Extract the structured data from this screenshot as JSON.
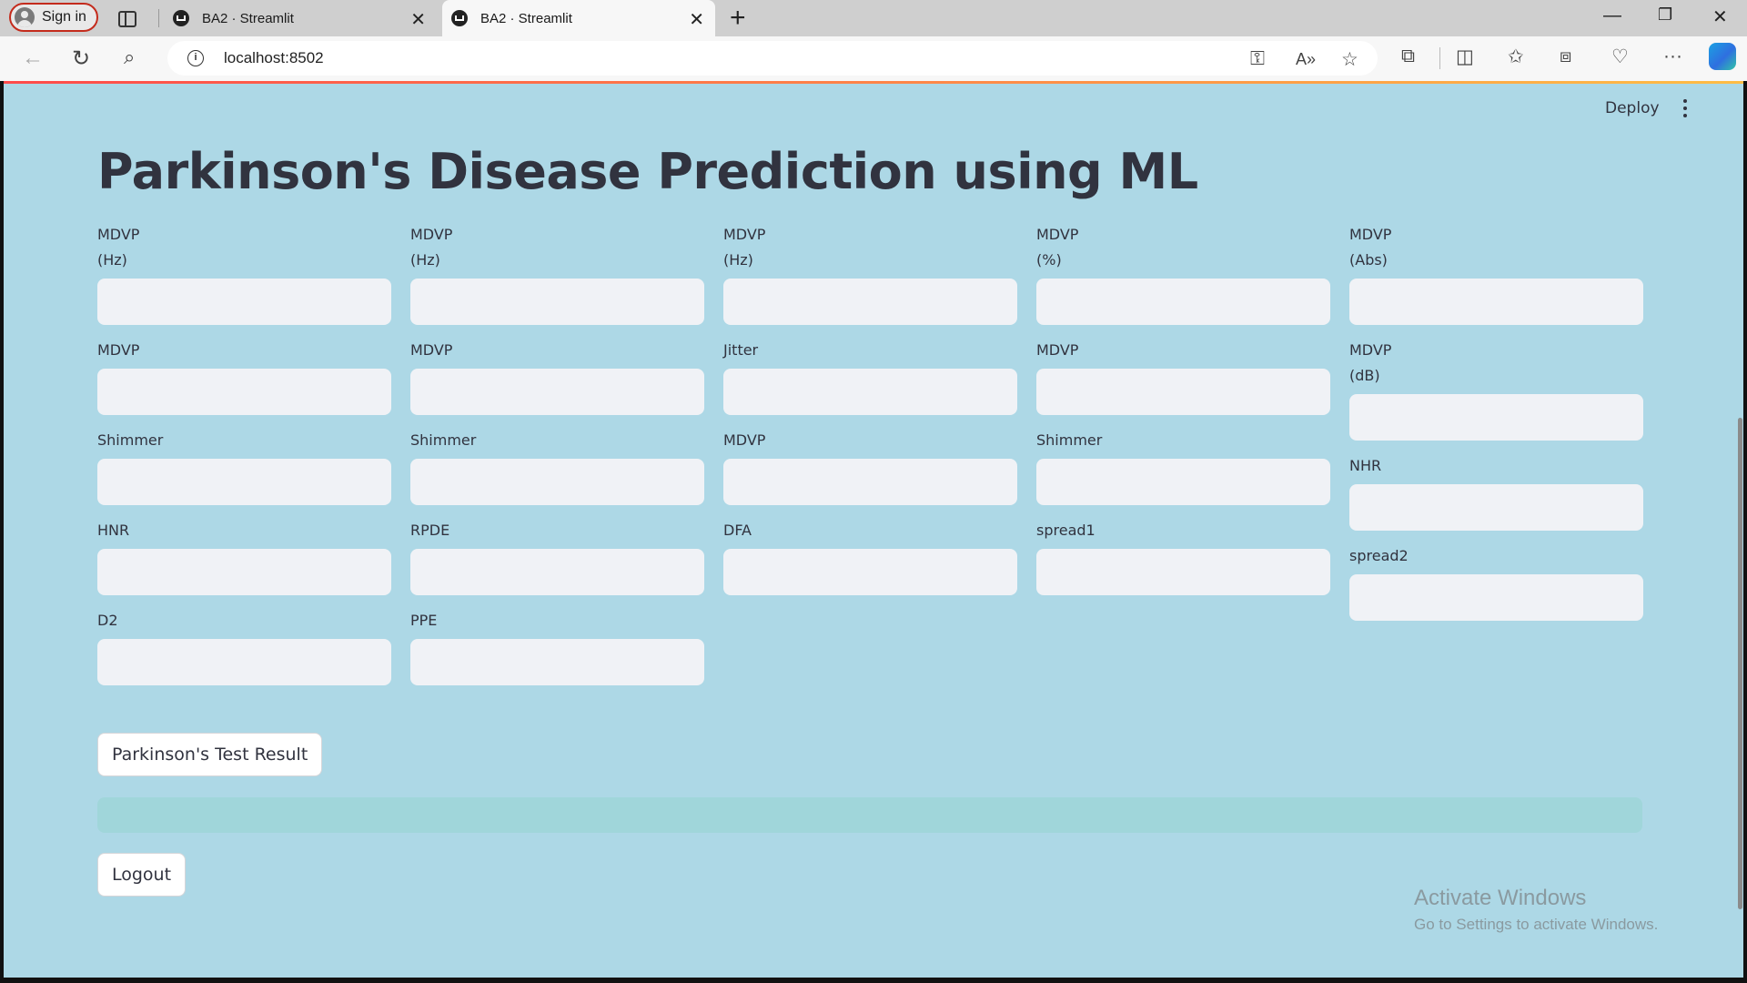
{
  "browser": {
    "signin_label": "Sign in",
    "tabs": [
      {
        "title": "BA2 · Streamlit",
        "active": false
      },
      {
        "title": "BA2 · Streamlit",
        "active": true
      }
    ],
    "url": "localhost:8502"
  },
  "app": {
    "deploy_label": "Deploy",
    "title": "Parkinson's Disease Prediction using ML",
    "columns": [
      [
        {
          "line1": "MDVP",
          "line2": "(Hz)",
          "value": ""
        },
        {
          "line1": "MDVP",
          "line2": "",
          "value": ""
        },
        {
          "line1": "Shimmer",
          "line2": "",
          "value": ""
        },
        {
          "line1": "HNR",
          "line2": "",
          "value": ""
        },
        {
          "line1": "D2",
          "line2": "",
          "value": ""
        }
      ],
      [
        {
          "line1": "MDVP",
          "line2": "(Hz)",
          "value": ""
        },
        {
          "line1": "MDVP",
          "line2": "",
          "value": ""
        },
        {
          "line1": "Shimmer",
          "line2": "",
          "value": ""
        },
        {
          "line1": "RPDE",
          "line2": "",
          "value": ""
        },
        {
          "line1": "PPE",
          "line2": "",
          "value": ""
        }
      ],
      [
        {
          "line1": "MDVP",
          "line2": "(Hz)",
          "value": ""
        },
        {
          "line1": "Jitter",
          "line2": "",
          "value": ""
        },
        {
          "line1": "MDVP",
          "line2": "",
          "value": ""
        },
        {
          "line1": "DFA",
          "line2": "",
          "value": ""
        }
      ],
      [
        {
          "line1": "MDVP",
          "line2": "(%)",
          "value": ""
        },
        {
          "line1": "MDVP",
          "line2": "",
          "value": ""
        },
        {
          "line1": "Shimmer",
          "line2": "",
          "value": ""
        },
        {
          "line1": "spread1",
          "line2": "",
          "value": ""
        }
      ],
      [
        {
          "line1": "MDVP",
          "line2": "(Abs)",
          "value": ""
        },
        {
          "line1": "MDVP",
          "line2": "(dB)",
          "value": ""
        },
        {
          "line1": "NHR",
          "line2": "",
          "value": ""
        },
        {
          "line1": "spread2",
          "line2": "",
          "value": ""
        }
      ]
    ],
    "test_button_label": "Parkinson's Test Result",
    "result_text": "",
    "logout_label": "Logout"
  },
  "watermark": {
    "line1": "Activate Windows",
    "line2": "Go to Settings to activate Windows."
  },
  "colors": {
    "app_background": "#add8e6",
    "input_background": "#f0f2f6",
    "result_background": "#a0d6da"
  }
}
